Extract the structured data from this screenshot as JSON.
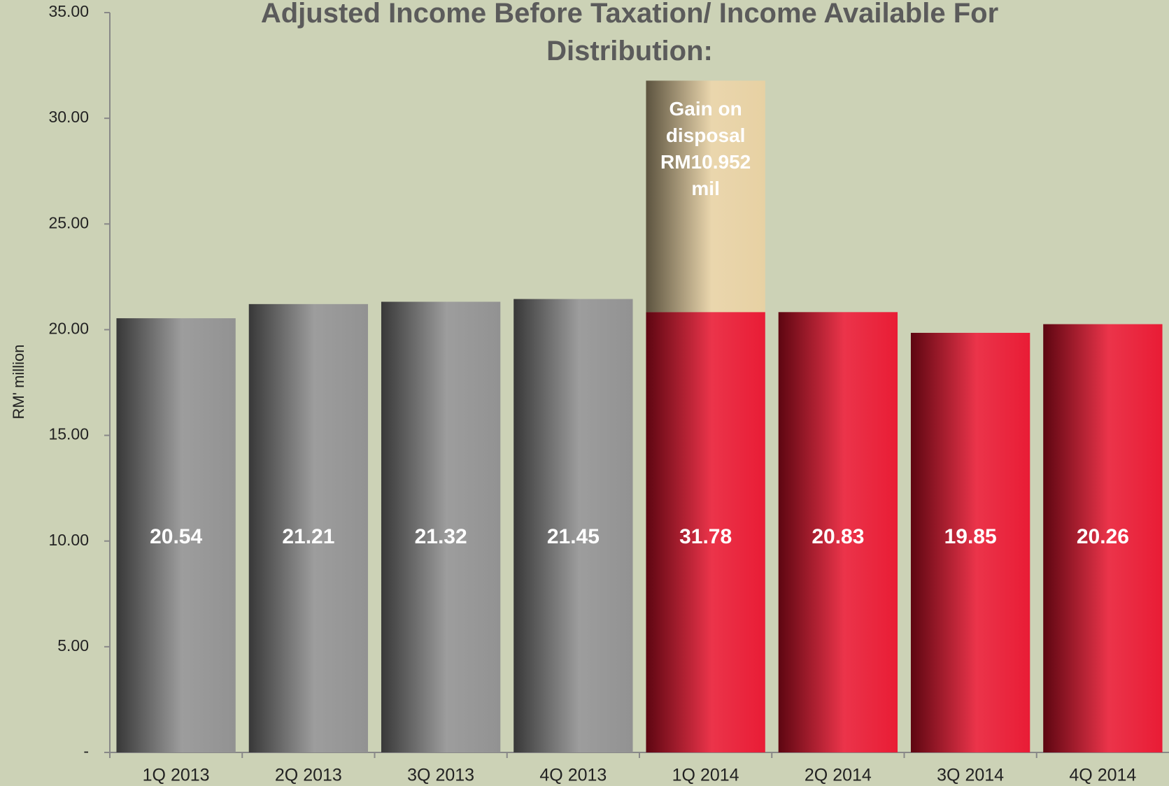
{
  "chart_data": {
    "type": "bar",
    "title": "Adjusted Income Before Taxation/ Income Available For Distribution:",
    "y_label": "RM' million",
    "categories": [
      "1Q 2013",
      "2Q 2013",
      "3Q 2013",
      "4Q 2013",
      "1Q 2014",
      "2Q 2014",
      "3Q 2014",
      "4Q 2014"
    ],
    "values": [
      20.54,
      21.21,
      21.32,
      21.45,
      31.78,
      20.83,
      19.85,
      20.26
    ],
    "colors": [
      "#8c8c8c",
      "#8c8c8c",
      "#8c8c8c",
      "#8c8c8c",
      "#e8102a",
      "#e8102a",
      "#e8102a",
      "#e8102a"
    ],
    "annotation": {
      "category": "1Q 2014",
      "text": "Gain on disposal RM10.952 mil",
      "value": 10.952,
      "color": "#e6cf9e"
    },
    "ylim": [
      0,
      35
    ],
    "yticks": [
      {
        "value": 0,
        "label": "-"
      },
      {
        "value": 5,
        "label": "5.00"
      },
      {
        "value": 10,
        "label": "10.00"
      },
      {
        "value": 15,
        "label": "15.00"
      },
      {
        "value": 20,
        "label": "20.00"
      },
      {
        "value": 25,
        "label": "25.00"
      },
      {
        "value": 30,
        "label": "30.00"
      },
      {
        "value": 35,
        "label": "35.00"
      }
    ],
    "grid": false
  }
}
